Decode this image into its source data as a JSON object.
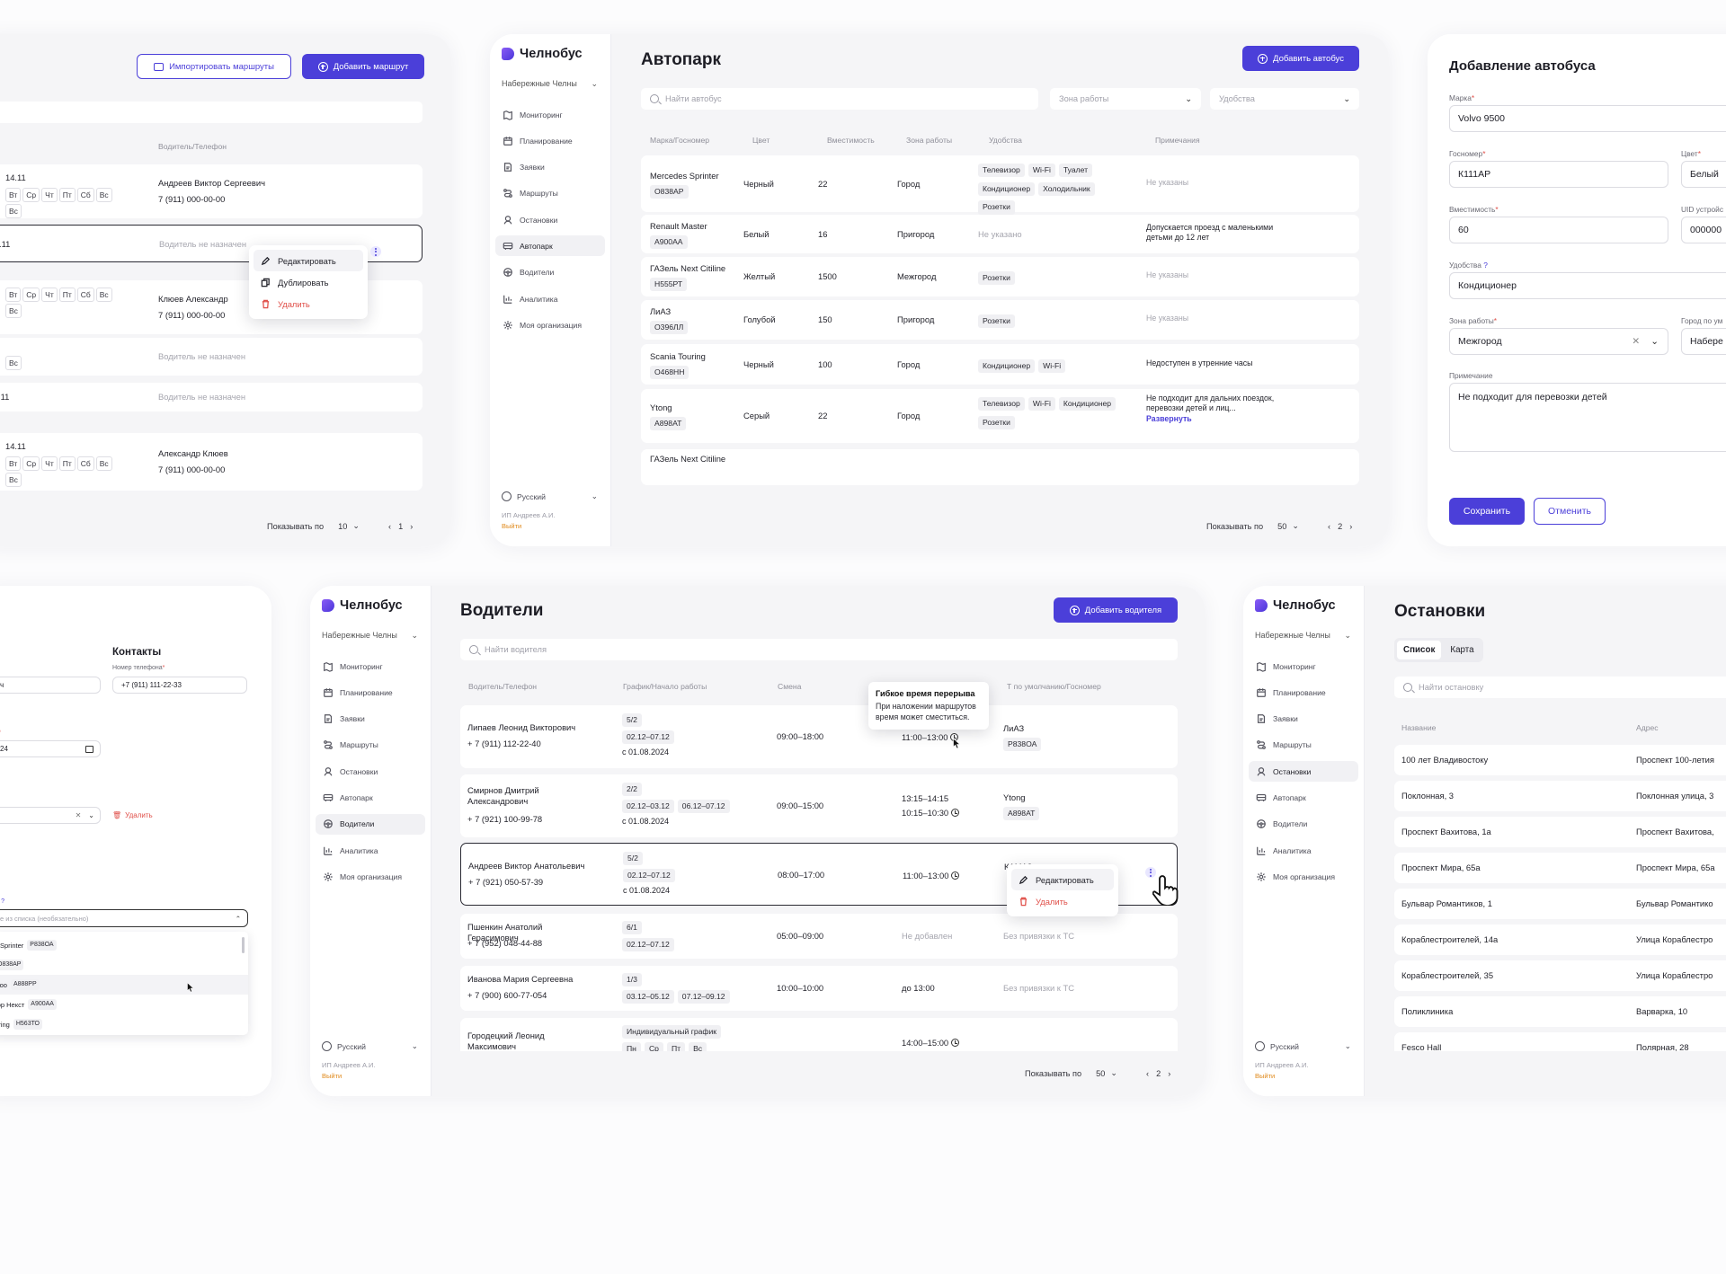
{
  "brand": "Челнобус",
  "city": "Набережные Челны",
  "nav": [
    "Мониторинг",
    "Планирование",
    "Заявки",
    "Маршруты",
    "Остановки",
    "Автопарк",
    "Водители",
    "Аналитика",
    "Моя организация"
  ],
  "lang": "Русский",
  "org": "ИП Андреев А.И.",
  "logout": "Выйти",
  "routes": {
    "import_btn": "Импортировать маршруты",
    "add_btn": "Добавить маршрут",
    "col_driver": "Водитель/Телефон",
    "rows": [
      {
        "date": "14.11",
        "days": [
          "Вт",
          "Ср",
          "Чт",
          "Пт",
          "Сб",
          "Вс"
        ],
        "days2": [
          "Вс"
        ],
        "driver": "Андреев Виктор Сергеевич",
        "phone": "7 (911) 000-00-00"
      },
      {
        "date": ".11",
        "driver": "Водитель не назначен"
      },
      {
        "days": [
          "Вт",
          "Ср",
          "Чт",
          "Пт",
          "Сб",
          "Вс"
        ],
        "days2": [
          "Вс"
        ],
        "driver": "Клюев Александр",
        "phone": "7 (911) 000-00-00"
      },
      {
        "days2": [
          "Вс"
        ],
        "driver": "Водитель не назначен"
      },
      {
        "date": ".11",
        "driver": "Водитель не назначен"
      },
      {
        "date": "14.11",
        "days": [
          "Вт",
          "Ср",
          "Чт",
          "Пт",
          "Сб",
          "Вс"
        ],
        "days2": [
          "Вс"
        ],
        "driver": "Александр Клюев",
        "phone": "7 (911) 000-00-00"
      }
    ],
    "menu": [
      "Редактировать",
      "Дублировать",
      "Удалить"
    ],
    "show_by": "Показывать по",
    "per_page": "10",
    "page": "1"
  },
  "fleet": {
    "title": "Автопарк",
    "add_btn": "Добавить автобус",
    "search_placeholder": "Найти автобус",
    "zone_placeholder": "Зона работы",
    "amen_placeholder": "Удобства",
    "cols": [
      "Марка/Госномер",
      "Цвет",
      "Вместимость",
      "Зона работы",
      "Удобства",
      "Примечания"
    ],
    "rows": [
      {
        "model": "Mercedes Sprinter",
        "plate": "О838АР",
        "color": "Черный",
        "cap": "22",
        "zone": "Город",
        "amen": [
          "Телевизор",
          "Wi-Fi",
          "Туалет",
          "Кондиционер",
          "Холодильник",
          "Розетки"
        ],
        "note": "Не указаны",
        "note_muted": true
      },
      {
        "model": "Renault Master",
        "plate": "А900АА",
        "color": "Белый",
        "cap": "16",
        "zone": "Пригород",
        "amen_text": "Не указано",
        "note": "Допускается проезд с маленькими детьми до 12 лет"
      },
      {
        "model": "ГАЗель Next Citiline",
        "plate": "Н555РТ",
        "color": "Желтый",
        "cap": "1500",
        "zone": "Межгород",
        "amen": [
          "Розетки"
        ],
        "note": "Не указаны",
        "note_muted": true
      },
      {
        "model": "ЛиАЗ",
        "plate": "О396ЛЛ",
        "color": "Голубой",
        "cap": "150",
        "zone": "Пригород",
        "amen": [
          "Розетки"
        ],
        "note": "Не указаны",
        "note_muted": true
      },
      {
        "model": "Scania Touring",
        "plate": "О468НН",
        "color": "Черный",
        "cap": "100",
        "zone": "Город",
        "amen": [
          "Кондиционер",
          "Wi-Fi"
        ],
        "note": "Недоступен в утренние часы"
      },
      {
        "model": "Ytong",
        "plate": "А898АТ",
        "color": "Серый",
        "cap": "22",
        "zone": "Город",
        "amen": [
          "Телевизор",
          "Wi-Fi",
          "Кондиционер",
          "Розетки"
        ],
        "note": "Не подходит для дальних поездок, перевозки детей и лиц...",
        "expand": "Развернуть"
      },
      {
        "model": "ГАЗель Next Citiline"
      }
    ],
    "show_by": "Показывать по",
    "per_page": "50",
    "page": "2"
  },
  "add_bus": {
    "title": "Добавление автобуса",
    "brand_label": "Марка",
    "brand_value": "Volvo 9500",
    "plate_label": "Госномер",
    "plate_value": "К111АР",
    "color_label": "Цвет",
    "color_value": "Белый",
    "cap_label": "Вместимость",
    "cap_value": "60",
    "uid_label": "UID устройс",
    "uid_value": "000000",
    "amen_label": "Удобства",
    "amen_value": "Кондиционер",
    "zone_label": "Зона работы",
    "zone_value": "Межгород",
    "city_label": "Город по ум",
    "city_value": "Набере",
    "note_label": "Примечание",
    "note_value": "Не подходит для перевозки детей",
    "save": "Сохранить",
    "cancel": "Отменить"
  },
  "driver_form": {
    "contacts": "Контакты",
    "phone_label": "Номер телефона",
    "phone_value": "+7 (911) 111-22-33",
    "name_tail": "ч",
    "date_label": "ты",
    "date_value": "24",
    "delete": "Удалить",
    "bus_label": "ию",
    "bus_placeholder": "е из списка (необязательно)",
    "options": [
      {
        "name": "es Sprinter",
        "plate": "Р838ОА"
      },
      {
        "name": "",
        "plate": "О838АР"
      },
      {
        "name": "ewoo",
        "plate": "А888РР"
      },
      {
        "name": "ктор Некст",
        "plate": "А900АА"
      },
      {
        "name": "ouring",
        "plate": "Н563ТО"
      }
    ]
  },
  "drivers": {
    "title": "Водители",
    "add_btn": "Добавить водителя",
    "search_placeholder": "Найти водителя",
    "cols": [
      "Водитель/Телефон",
      "График/Начало работы",
      "Смена",
      "",
      "Т по умолчанию/Госномер"
    ],
    "rows": [
      {
        "name": "Липаев Леонид Викторович",
        "phone": "+ 7 (911) 112-22-40",
        "sched": "5/2",
        "periods": [
          "02.12–07.12"
        ],
        "start": "с 01.08.2024",
        "shift": "09:00–18:00",
        "brk": [
          "11:00–13:00"
        ],
        "bus": "ЛиАЗ",
        "plate": "Р838ОА"
      },
      {
        "name": "Смирнов Дмитрий Александрович",
        "phone": "+ 7 (921) 100-99-78",
        "sched": "2/2",
        "periods": [
          "02.12–03.12",
          "06.12–07.12"
        ],
        "start": "с 01.08.2024",
        "shift": "09:00–15:00",
        "brk": [
          "13:15–14:15",
          "10:15–10:30"
        ],
        "bus": "Ytong",
        "plate": "А898АТ"
      },
      {
        "name": "Андреев Виктор Анатольевич",
        "phone": "+ 7 (921) 050-57-39",
        "sched": "5/2",
        "periods": [
          "02.12–07.12"
        ],
        "start": "с 01.08.2024",
        "shift": "08:00–17:00",
        "brk": [
          "11:00–13:00"
        ],
        "bus": "КАМАЗ",
        "plate": ""
      },
      {
        "name": "Пшенкин Анатолий Герасимович",
        "phone": "+ 7 (952) 048-44-88",
        "sched": "6/1",
        "periods": [
          "02.12–07.12"
        ],
        "start": "",
        "shift": "05:00–09:00",
        "brk_text": "Не добавлен",
        "bus_text": "Без привязки к ТС"
      },
      {
        "name": "Иванова Мария Сергеевна",
        "phone": "+ 7 (900) 600-77-054",
        "sched": "1/3",
        "periods": [
          "03.12–05.12",
          "07.12–09.12"
        ],
        "start": "",
        "shift": "10:00–10:00",
        "brk_plain": "до 13:00",
        "bus_text": "Без привязки к ТС"
      },
      {
        "name": "Городецкий Леонид Максимович",
        "sched": "Индивидуальный график",
        "days": [
          "Пн",
          "Ср",
          "Пт",
          "Вс"
        ],
        "brk": [
          "14:00–15:00"
        ]
      }
    ],
    "tooltip_title": "Гибкое время перерыва",
    "tooltip_text": "При наложении маршрутов время может сместиться.",
    "menu": [
      "Редактировать",
      "Удалить"
    ],
    "show_by": "Показывать по",
    "per_page": "50",
    "page": "2"
  },
  "stops": {
    "title": "Остановки",
    "tabs": [
      "Список",
      "Карта"
    ],
    "search_placeholder": "Найти остановку",
    "cols": [
      "Название",
      "Адрес"
    ],
    "rows": [
      {
        "name": "100 лет Владивостоку",
        "addr": "Проспект 100-летия"
      },
      {
        "name": "Поклонная, 3",
        "addr": "Поклонная улица, 3"
      },
      {
        "name": "Проспект Вахитова, 1а",
        "addr": "Проспект Вахитова,"
      },
      {
        "name": "Проспект Мира, 65а",
        "addr": "Проспект Мира, 65а"
      },
      {
        "name": "Бульвар Романтиков, 1",
        "addr": "Бульвар Романтико"
      },
      {
        "name": "Кораблестроителей, 14а",
        "addr": "Улица Кораблестро"
      },
      {
        "name": "Кораблестроителей, 35",
        "addr": "Улица Кораблестро"
      },
      {
        "name": "Поликлиника",
        "addr": "Варварка, 10"
      },
      {
        "name": "Fesco Hall",
        "addr": "Полярная, 28"
      }
    ]
  },
  "colors": {
    "accent": "#4b3fd9",
    "danger": "#e0504a",
    "logout": "#e0891a"
  }
}
